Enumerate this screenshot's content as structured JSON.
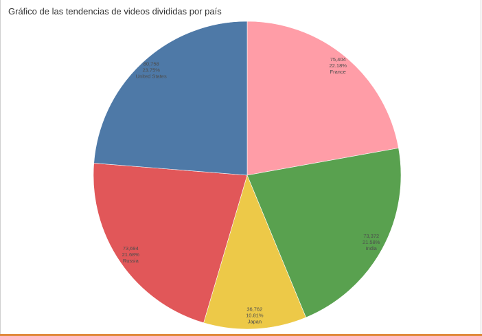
{
  "chart_data": {
    "type": "pie",
    "title": "Gráfico de las tendencias de videos divididas por país",
    "slices": [
      {
        "label": "France",
        "value": 75404,
        "value_label": "75,404",
        "percent_label": "22.18%",
        "color": "#ff9da7"
      },
      {
        "label": "India",
        "value": 73372,
        "value_label": "73,372",
        "percent_label": "21.58%",
        "color": "#59a14f"
      },
      {
        "label": "Japan",
        "value": 36762,
        "value_label": "36,762",
        "percent_label": "10.81%",
        "color": "#edc948"
      },
      {
        "label": "Russia",
        "value": 73694,
        "value_label": "73,694",
        "percent_label": "21.68%",
        "color": "#e15759"
      },
      {
        "label": "United States",
        "value": 80758,
        "value_label": "80,758",
        "percent_label": "23.75%",
        "color": "#4e79a7"
      }
    ],
    "start_angle_deg": 0,
    "direction": "clockwise",
    "legend": "none"
  }
}
